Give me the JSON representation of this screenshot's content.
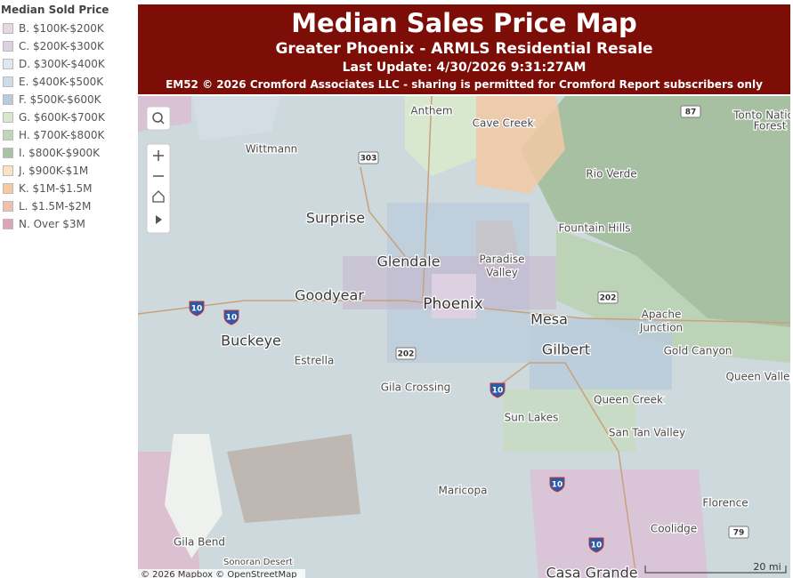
{
  "legend": {
    "title": "Median Sold Price",
    "items": [
      {
        "label": "B. $100K-$200K",
        "color": "#e8d6e2"
      },
      {
        "label": "C. $200K-$300K",
        "color": "#ddd0e1"
      },
      {
        "label": "D. $300K-$400K",
        "color": "#dfe7ef"
      },
      {
        "label": "E. $400K-$500K",
        "color": "#cfdce8"
      },
      {
        "label": "F. $500K-$600K",
        "color": "#b8cadc"
      },
      {
        "label": "G. $600K-$700K",
        "color": "#d7e8cf"
      },
      {
        "label": "H. $700K-$800K",
        "color": "#bcd6b7"
      },
      {
        "label": "I. $800K-$900K",
        "color": "#a8c3a5"
      },
      {
        "label": "J. $900K-$1M",
        "color": "#fae2c2"
      },
      {
        "label": "K. $1M-$1.5M",
        "color": "#f6c9a3"
      },
      {
        "label": "L. $1.5M-$2M",
        "color": "#ecc2ae"
      },
      {
        "label": "N. Over $3M",
        "color": "#dca6b8"
      }
    ]
  },
  "header": {
    "title": "Median Sales Price Map",
    "subtitle": "Greater Phoenix - ARMLS Residential Resale",
    "last_update": "Last Update: 4/30/2026 9:31:27AM",
    "copyright": "EM52 © 2026 Cromford Associates LLC - sharing is permitted for Cromford Report subscribers only"
  },
  "map": {
    "places": [
      "Anthem",
      "Cave Creek",
      "Tonto Natio",
      "Forest",
      "Wittmann",
      "Rio Verde",
      "Surprise",
      "Fountain Hills",
      "Glendale",
      "Paradise",
      "Valley",
      "Goodyear",
      "Phoenix",
      "Mesa",
      "Apache",
      "Junction",
      "Buckeye",
      "Gilbert",
      "Gold Canyon",
      "Estrella",
      "Queen Valley",
      "Gila Crossing",
      "Queen Creek",
      "Sun Lakes",
      "San Tan Valley",
      "Maricopa",
      "Florence",
      "Coolidge",
      "Gila Bend",
      "Sonoran Desert",
      "Casa Grande"
    ],
    "roads": [
      "87",
      "303",
      "10",
      "10",
      "202",
      "202",
      "10",
      "10",
      "10",
      "79"
    ],
    "attribution": "© 2026 Mapbox © OpenStreetMap",
    "scale": "20 mi"
  }
}
